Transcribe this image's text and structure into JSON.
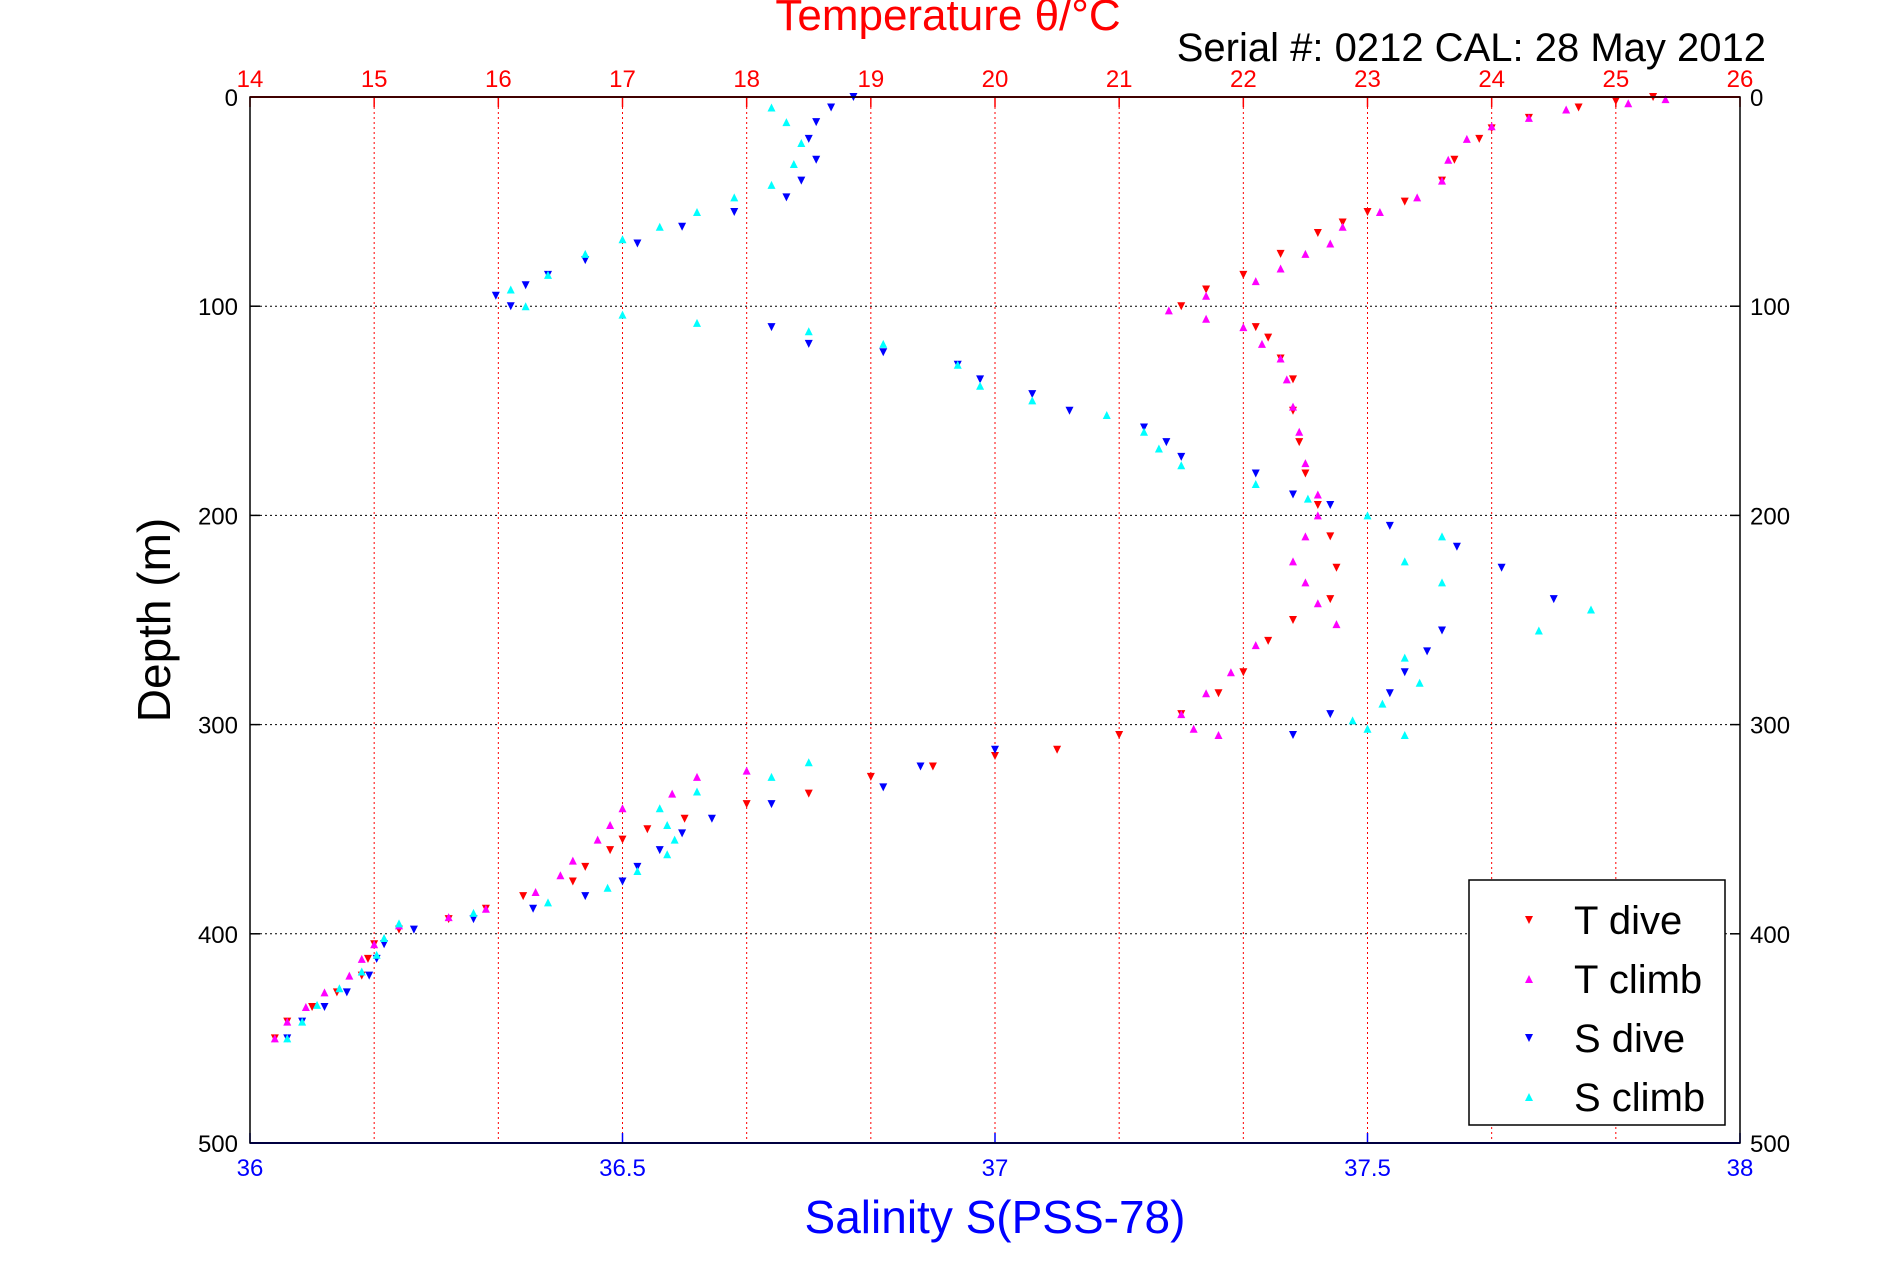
{
  "chart_data": {
    "type": "scatter",
    "title": "Temperature θ/°C",
    "subtitle": "Serial #: 0212  CAL: 28 May 2012",
    "xlabel": "Salinity S(PSS-78)",
    "ylabel": "Depth (m)",
    "ylim": [
      0,
      500
    ],
    "y_ticks": [
      0,
      100,
      200,
      300,
      400,
      500
    ],
    "xlim_salinity": [
      36,
      38
    ],
    "salinity_ticks": [
      36,
      36.5,
      37,
      37.5,
      38
    ],
    "xlim_temperature": [
      14,
      26
    ],
    "temperature_ticks": [
      14,
      15,
      16,
      17,
      18,
      19,
      20,
      21,
      22,
      23,
      24,
      25,
      26
    ],
    "grid": true,
    "legend_position": "bottom-right",
    "colors": {
      "temperature_axis": "#ff0000",
      "salinity_axis": "#0000ff",
      "t_dive": "#ff0000",
      "t_climb": "#ff00ff",
      "s_dive": "#0000ff",
      "s_climb": "#00ffff"
    },
    "series": [
      {
        "name": "T dive",
        "axis": "temperature",
        "marker": "triangle-down",
        "color": "#ff0000",
        "points": [
          [
            25.3,
            0
          ],
          [
            25.0,
            2
          ],
          [
            24.7,
            5
          ],
          [
            24.3,
            10
          ],
          [
            24.0,
            15
          ],
          [
            23.9,
            20
          ],
          [
            23.7,
            30
          ],
          [
            23.6,
            40
          ],
          [
            23.3,
            50
          ],
          [
            23.0,
            55
          ],
          [
            22.8,
            60
          ],
          [
            22.6,
            65
          ],
          [
            22.3,
            75
          ],
          [
            22.0,
            85
          ],
          [
            21.7,
            92
          ],
          [
            21.5,
            100
          ],
          [
            22.1,
            110
          ],
          [
            22.2,
            115
          ],
          [
            22.3,
            125
          ],
          [
            22.4,
            135
          ],
          [
            22.4,
            150
          ],
          [
            22.45,
            165
          ],
          [
            22.5,
            180
          ],
          [
            22.6,
            195
          ],
          [
            22.7,
            210
          ],
          [
            22.75,
            225
          ],
          [
            22.7,
            240
          ],
          [
            22.4,
            250
          ],
          [
            22.2,
            260
          ],
          [
            22.0,
            275
          ],
          [
            21.8,
            285
          ],
          [
            21.5,
            295
          ],
          [
            21.0,
            305
          ],
          [
            20.5,
            312
          ],
          [
            20.0,
            315
          ],
          [
            19.5,
            320
          ],
          [
            19.0,
            325
          ],
          [
            18.5,
            333
          ],
          [
            18.0,
            338
          ],
          [
            17.5,
            345
          ],
          [
            17.2,
            350
          ],
          [
            17.0,
            355
          ],
          [
            16.9,
            360
          ],
          [
            16.7,
            368
          ],
          [
            16.6,
            375
          ],
          [
            16.2,
            382
          ],
          [
            15.9,
            388
          ],
          [
            15.6,
            393
          ],
          [
            15.2,
            398
          ],
          [
            15.0,
            405
          ],
          [
            14.95,
            412
          ],
          [
            14.9,
            420
          ],
          [
            14.7,
            428
          ],
          [
            14.5,
            435
          ],
          [
            14.3,
            442
          ],
          [
            14.2,
            450
          ]
        ]
      },
      {
        "name": "T climb",
        "axis": "temperature",
        "marker": "triangle-up",
        "color": "#ff00ff",
        "points": [
          [
            25.4,
            1
          ],
          [
            25.1,
            3
          ],
          [
            24.6,
            6
          ],
          [
            24.3,
            10
          ],
          [
            24.0,
            14
          ],
          [
            23.8,
            20
          ],
          [
            23.65,
            30
          ],
          [
            23.6,
            40
          ],
          [
            23.4,
            48
          ],
          [
            23.1,
            55
          ],
          [
            22.8,
            62
          ],
          [
            22.7,
            70
          ],
          [
            22.5,
            75
          ],
          [
            22.3,
            82
          ],
          [
            22.1,
            88
          ],
          [
            21.7,
            95
          ],
          [
            21.4,
            102
          ],
          [
            21.7,
            106
          ],
          [
            22.0,
            110
          ],
          [
            22.15,
            118
          ],
          [
            22.3,
            125
          ],
          [
            22.35,
            135
          ],
          [
            22.4,
            148
          ],
          [
            22.45,
            160
          ],
          [
            22.5,
            175
          ],
          [
            22.6,
            190
          ],
          [
            22.6,
            200
          ],
          [
            22.5,
            210
          ],
          [
            22.4,
            222
          ],
          [
            22.5,
            232
          ],
          [
            22.6,
            242
          ],
          [
            22.75,
            252
          ],
          [
            22.1,
            262
          ],
          [
            21.9,
            275
          ],
          [
            21.7,
            285
          ],
          [
            21.5,
            295
          ],
          [
            21.6,
            302
          ],
          [
            21.8,
            305
          ],
          [
            18.0,
            322
          ],
          [
            17.6,
            325
          ],
          [
            17.4,
            333
          ],
          [
            17.0,
            340
          ],
          [
            16.9,
            348
          ],
          [
            16.8,
            355
          ],
          [
            16.6,
            365
          ],
          [
            16.5,
            372
          ],
          [
            16.3,
            380
          ],
          [
            15.9,
            388
          ],
          [
            15.6,
            392
          ],
          [
            15.2,
            396
          ],
          [
            15.0,
            405
          ],
          [
            14.9,
            412
          ],
          [
            14.8,
            420
          ],
          [
            14.6,
            428
          ],
          [
            14.45,
            435
          ],
          [
            14.3,
            442
          ],
          [
            14.2,
            450
          ]
        ]
      },
      {
        "name": "S dive",
        "axis": "salinity",
        "marker": "triangle-down",
        "color": "#0000ff",
        "points": [
          [
            36.81,
            0
          ],
          [
            36.78,
            5
          ],
          [
            36.76,
            12
          ],
          [
            36.75,
            20
          ],
          [
            36.76,
            30
          ],
          [
            36.74,
            40
          ],
          [
            36.72,
            48
          ],
          [
            36.65,
            55
          ],
          [
            36.58,
            62
          ],
          [
            36.52,
            70
          ],
          [
            36.45,
            78
          ],
          [
            36.4,
            85
          ],
          [
            36.37,
            90
          ],
          [
            36.33,
            95
          ],
          [
            36.35,
            100
          ],
          [
            36.7,
            110
          ],
          [
            36.75,
            118
          ],
          [
            36.85,
            122
          ],
          [
            36.95,
            128
          ],
          [
            36.98,
            135
          ],
          [
            37.05,
            142
          ],
          [
            37.1,
            150
          ],
          [
            37.2,
            158
          ],
          [
            37.23,
            165
          ],
          [
            37.25,
            172
          ],
          [
            37.35,
            180
          ],
          [
            37.4,
            190
          ],
          [
            37.45,
            195
          ],
          [
            37.53,
            205
          ],
          [
            37.62,
            215
          ],
          [
            37.68,
            225
          ],
          [
            37.75,
            240
          ],
          [
            37.6,
            255
          ],
          [
            37.58,
            265
          ],
          [
            37.55,
            275
          ],
          [
            37.53,
            285
          ],
          [
            37.45,
            295
          ],
          [
            37.4,
            305
          ],
          [
            37.0,
            312
          ],
          [
            36.9,
            320
          ],
          [
            36.85,
            330
          ],
          [
            36.7,
            338
          ],
          [
            36.62,
            345
          ],
          [
            36.58,
            352
          ],
          [
            36.55,
            360
          ],
          [
            36.52,
            368
          ],
          [
            36.5,
            375
          ],
          [
            36.45,
            382
          ],
          [
            36.38,
            388
          ],
          [
            36.3,
            393
          ],
          [
            36.22,
            398
          ],
          [
            36.18,
            405
          ],
          [
            36.17,
            412
          ],
          [
            36.16,
            420
          ],
          [
            36.13,
            428
          ],
          [
            36.1,
            435
          ],
          [
            36.07,
            442
          ],
          [
            36.05,
            450
          ]
        ]
      },
      {
        "name": "S climb",
        "axis": "salinity",
        "marker": "triangle-up",
        "color": "#00ffff",
        "points": [
          [
            36.7,
            5
          ],
          [
            36.72,
            12
          ],
          [
            36.74,
            22
          ],
          [
            36.73,
            32
          ],
          [
            36.7,
            42
          ],
          [
            36.65,
            48
          ],
          [
            36.6,
            55
          ],
          [
            36.55,
            62
          ],
          [
            36.5,
            68
          ],
          [
            36.45,
            75
          ],
          [
            36.4,
            85
          ],
          [
            36.35,
            92
          ],
          [
            36.37,
            100
          ],
          [
            36.5,
            104
          ],
          [
            36.6,
            108
          ],
          [
            36.75,
            112
          ],
          [
            36.85,
            118
          ],
          [
            36.95,
            128
          ],
          [
            36.98,
            138
          ],
          [
            37.05,
            145
          ],
          [
            37.15,
            152
          ],
          [
            37.2,
            160
          ],
          [
            37.22,
            168
          ],
          [
            37.25,
            176
          ],
          [
            37.35,
            185
          ],
          [
            37.42,
            192
          ],
          [
            37.5,
            200
          ],
          [
            37.6,
            210
          ],
          [
            37.55,
            222
          ],
          [
            37.6,
            232
          ],
          [
            37.8,
            245
          ],
          [
            37.73,
            255
          ],
          [
            37.55,
            268
          ],
          [
            37.57,
            280
          ],
          [
            37.52,
            290
          ],
          [
            37.48,
            298
          ],
          [
            37.5,
            302
          ],
          [
            37.55,
            305
          ],
          [
            36.75,
            318
          ],
          [
            36.7,
            325
          ],
          [
            36.6,
            332
          ],
          [
            36.55,
            340
          ],
          [
            36.56,
            348
          ],
          [
            36.57,
            355
          ],
          [
            36.56,
            362
          ],
          [
            36.52,
            370
          ],
          [
            36.48,
            378
          ],
          [
            36.4,
            385
          ],
          [
            36.3,
            390
          ],
          [
            36.2,
            395
          ],
          [
            36.18,
            402
          ],
          [
            36.17,
            410
          ],
          [
            36.15,
            418
          ],
          [
            36.12,
            426
          ],
          [
            36.09,
            434
          ],
          [
            36.07,
            442
          ],
          [
            36.05,
            450
          ]
        ]
      }
    ]
  }
}
